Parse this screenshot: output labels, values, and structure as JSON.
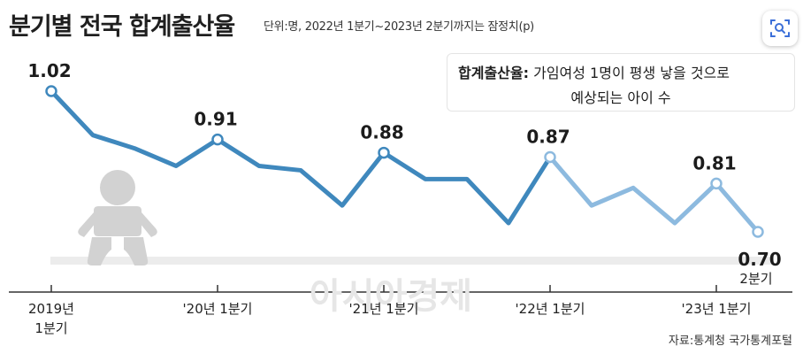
{
  "title": "분기별 전국 합계출산율",
  "subtitle": "단위:명, 2022년 1분기~2023년 2분기까지는 잠정치(p)",
  "legend": {
    "term": "합계출산율:",
    "definition_line1": "가임여성 1명이 평생 낳을 것으로",
    "definition_line2": "예상되는 아이 수"
  },
  "source": "자료:통계청 국가통계포털",
  "watermark": "아시아경제",
  "icons": {
    "lens": "visual-search-icon",
    "baby": "baby-icon"
  },
  "colors": {
    "line_confirmed": "#3f88bd",
    "line_provisional": "#8dbadf",
    "axis": "#333333",
    "band": "#ececec",
    "baby": "#d2d2d2"
  },
  "chart_data": {
    "type": "line",
    "title": "분기별 전국 합계출산율",
    "unit": "명",
    "x": [
      "2019년 1분기",
      "2019년 2분기",
      "2019년 3분기",
      "2019년 4분기",
      "'20년 1분기",
      "'20년 2분기",
      "'20년 3분기",
      "'20년 4분기",
      "'21년 1분기",
      "'21년 2분기",
      "'21년 3분기",
      "'21년 4분기",
      "'22년 1분기",
      "'22년 2분기",
      "'22년 3분기",
      "'22년 4분기",
      "'23년 1분기",
      "'23년 2분기"
    ],
    "values": [
      1.02,
      0.92,
      0.89,
      0.85,
      0.91,
      0.85,
      0.84,
      0.76,
      0.88,
      0.82,
      0.82,
      0.72,
      0.87,
      0.76,
      0.8,
      0.72,
      0.81,
      0.7
    ],
    "provisional_from": "'22년 1분기",
    "labeled_points": [
      {
        "x": "2019년 1분기",
        "value": "1.02"
      },
      {
        "x": "'20년 1분기",
        "value": "0.91"
      },
      {
        "x": "'21년 1분기",
        "value": "0.88"
      },
      {
        "x": "'22년 1분기",
        "value": "0.87"
      },
      {
        "x": "'23년 1분기",
        "value": "0.81"
      },
      {
        "x": "'23년 2분기",
        "value": "0.70"
      }
    ],
    "end_label": "2분기",
    "x_ticks": [
      {
        "x": "2019년 1분기",
        "line1": "2019년",
        "line2": "1분기"
      },
      {
        "x": "'20년 1분기",
        "line1": "'20년 1분기",
        "line2": ""
      },
      {
        "x": "'21년 1분기",
        "line1": "'21년 1분기",
        "line2": ""
      },
      {
        "x": "'22년 1분기",
        "line1": "'22년 1분기",
        "line2": ""
      },
      {
        "x": "'23년 1분기",
        "line1": "'23년 1분기",
        "line2": ""
      }
    ],
    "ylim": [
      0.6,
      1.06
    ],
    "grid": false
  }
}
